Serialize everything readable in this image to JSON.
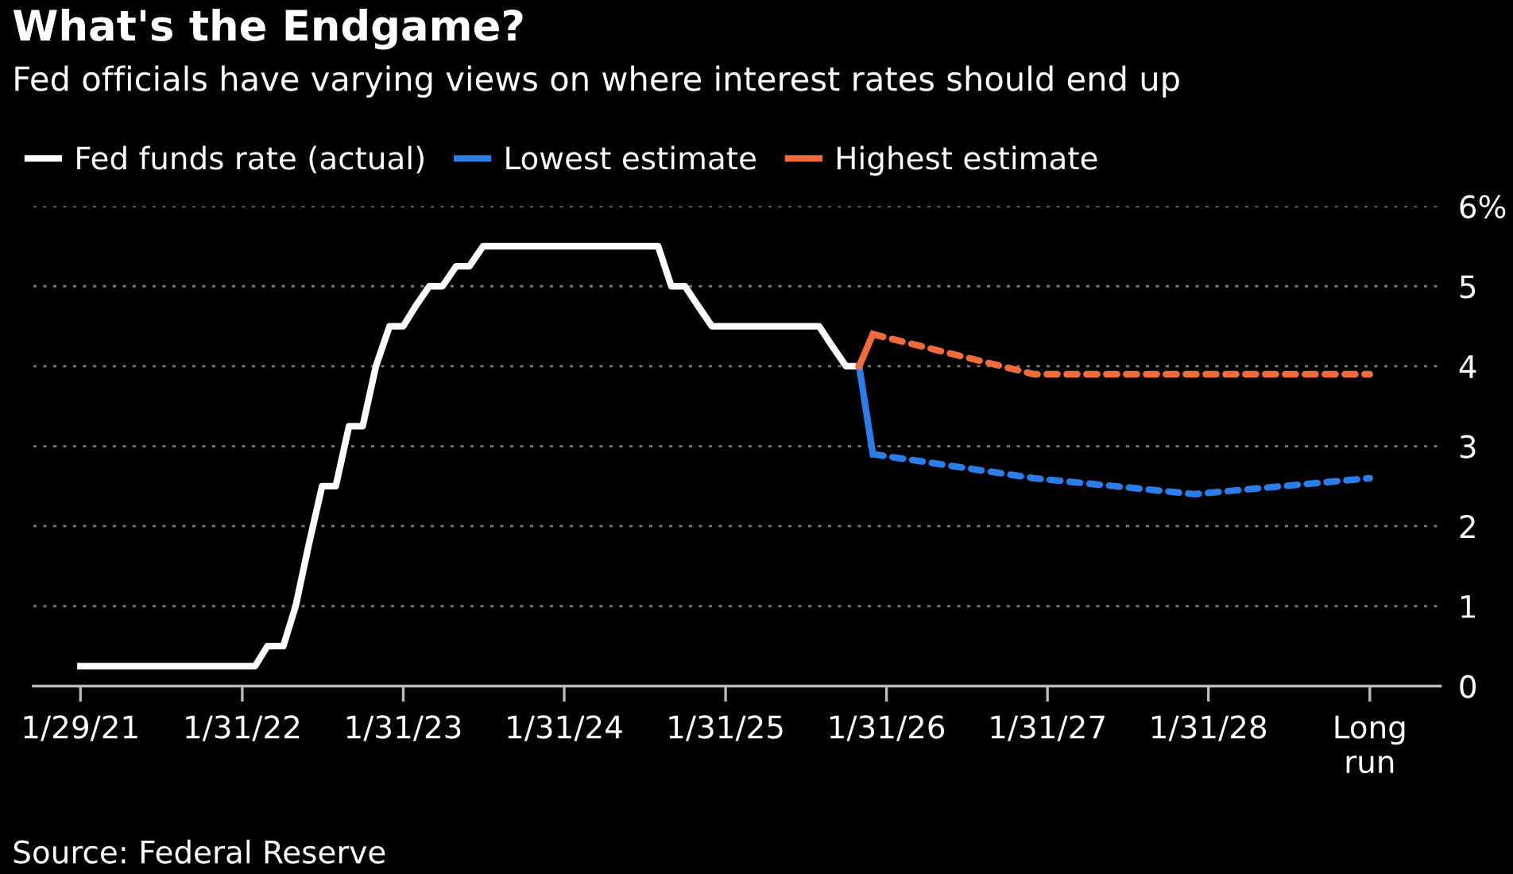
{
  "chart_data": {
    "type": "line",
    "title": "What's the Endgame?",
    "subtitle": "Fed officials have varying views on where interest rates should end up",
    "annotations": [
      "Source: Federal Reserve"
    ],
    "series": [
      {
        "name": "Fed funds rate (actual)",
        "color": "#ffffff",
        "line_style": "solid",
        "x": [
          "2021-01-29",
          "2022-03-01",
          "2022-03-29",
          "2022-05-04",
          "2022-06-01",
          "2022-06-30",
          "2022-07-31",
          "2022-08-31",
          "2022-09-30",
          "2022-10-31",
          "2022-11-30",
          "2022-12-31",
          "2023-01-31",
          "2023-02-28",
          "2023-03-31",
          "2023-04-30",
          "2023-05-31",
          "2023-06-30",
          "2023-07-31",
          "2024-08-31",
          "2024-09-30",
          "2024-10-31",
          "2024-11-30",
          "2024-12-31",
          "2025-08-31",
          "2025-09-30",
          "2025-10-31",
          "2025-11-30"
        ],
        "values": [
          0.25,
          0.25,
          0.5,
          0.5,
          1.0,
          1.75,
          2.5,
          2.5,
          3.25,
          3.25,
          4.0,
          4.5,
          4.5,
          4.75,
          5.0,
          5.0,
          5.25,
          5.25,
          5.5,
          5.5,
          5.0,
          5.0,
          4.75,
          4.5,
          4.5,
          4.25,
          4.0,
          4.0
        ]
      },
      {
        "name": "Lowest estimate",
        "color": "#2b7de9",
        "line_style": "solid",
        "x": [
          "2025-11-30",
          "2025-12-31"
        ],
        "values": [
          4.0,
          2.9
        ]
      },
      {
        "color": "#2b7de9",
        "line_style": "dashed",
        "x": [
          "2025-12-31",
          "2026-12-31",
          "2027-12-31",
          "2029-01-31"
        ],
        "values": [
          2.9,
          2.6,
          2.4,
          2.6
        ]
      },
      {
        "name": "Highest estimate",
        "color": "#f26b3a",
        "line_style": "solid",
        "x": [
          "2025-11-30",
          "2025-12-31"
        ],
        "values": [
          4.0,
          4.4
        ]
      },
      {
        "color": "#f26b3a",
        "line_style": "dashed",
        "x": [
          "2025-12-31",
          "2026-12-31",
          "2027-12-31",
          "2029-01-31"
        ],
        "values": [
          4.4,
          3.9,
          3.9,
          3.9
        ]
      }
    ],
    "xlim": [
      "2020-10-14",
      "2029-07-10"
    ],
    "xticks": [
      {
        "value": "2021-01-29",
        "label": "1/29/21"
      },
      {
        "value": "2022-01-31",
        "label": "1/31/22"
      },
      {
        "value": "2023-01-31",
        "label": "1/31/23"
      },
      {
        "value": "2024-01-31",
        "label": "1/31/24"
      },
      {
        "value": "2025-01-31",
        "label": "1/31/25"
      },
      {
        "value": "2026-01-31",
        "label": "1/31/26"
      },
      {
        "value": "2027-01-31",
        "label": "1/31/27"
      },
      {
        "value": "2028-01-31",
        "label": "1/31/28"
      },
      {
        "value": "2029-01-31",
        "label": "Long\nrun"
      }
    ],
    "ylim": [
      0,
      6
    ],
    "yticks": [
      0,
      1,
      2,
      3,
      4,
      5,
      {
        "value": 6,
        "label": "6%"
      }
    ],
    "grid": "y",
    "legend": "top left",
    "marker": "none"
  }
}
